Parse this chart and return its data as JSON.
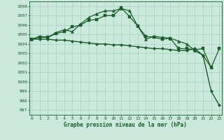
{
  "title": "Graphe pression niveau de la mer (hPa)",
  "bg_color": "#cbe8dc",
  "grid_color": "#9ecfbe",
  "line_color": "#1a5c2a",
  "ylim": [
    996.5,
    1008.5
  ],
  "xlim": [
    -0.3,
    23.3
  ],
  "yticks": [
    997,
    998,
    999,
    1000,
    1001,
    1002,
    1003,
    1004,
    1005,
    1006,
    1007,
    1008
  ],
  "xticks": [
    0,
    1,
    2,
    3,
    4,
    5,
    6,
    7,
    8,
    9,
    10,
    11,
    12,
    13,
    14,
    15,
    16,
    17,
    18,
    19,
    20,
    21,
    22,
    23
  ],
  "series": [
    {
      "x": [
        0,
        1,
        2,
        3,
        4,
        5,
        6,
        7,
        8,
        9,
        10,
        11,
        12,
        13,
        14,
        15,
        16,
        17,
        18,
        19,
        20,
        21,
        22,
        23
      ],
      "y": [
        1004.5,
        1004.7,
        1004.7,
        1005.1,
        1005.3,
        1005.8,
        1006.0,
        1006.5,
        1006.6,
        1007.0,
        1007.0,
        1007.8,
        1006.9,
        1005.9,
        1004.8,
        1004.7,
        1004.5,
        1004.6,
        1003.5,
        1003.5,
        1003.4,
        1003.5,
        1001.5,
        1003.5
      ],
      "marker": "s",
      "markersize": 2.2,
      "linewidth": 0.9
    },
    {
      "x": [
        0,
        1,
        2,
        3,
        4,
        5,
        6,
        7,
        8,
        9,
        10,
        11,
        12,
        13,
        14,
        15,
        16,
        17,
        18,
        19,
        20,
        21,
        22,
        23
      ],
      "y": [
        1004.5,
        1004.8,
        1004.7,
        1005.2,
        1005.5,
        1005.3,
        1006.1,
        1006.8,
        1007.2,
        1007.5,
        1007.5,
        1007.75,
        1007.5,
        1005.9,
        1004.5,
        1004.8,
        1004.7,
        1004.6,
        1004.3,
        1004.0,
        1003.3,
        1002.8,
        1001.5,
        null
      ],
      "marker": "^",
      "markersize": 3.0,
      "linewidth": 0.9
    },
    {
      "x": [
        0,
        1,
        2,
        3,
        4,
        5,
        6,
        7,
        8,
        9,
        10,
        11,
        12,
        13,
        14,
        15,
        16,
        17,
        18,
        19,
        20,
        21,
        22,
        23
      ],
      "y": [
        1004.5,
        1004.5,
        1004.5,
        1004.4,
        1004.4,
        1004.3,
        1004.2,
        1004.1,
        1004.0,
        1004.0,
        1003.9,
        1003.9,
        1003.8,
        1003.7,
        1003.6,
        1003.5,
        1003.5,
        1003.4,
        1003.3,
        1003.3,
        1003.5,
        1002.8,
        999.0,
        997.5
      ],
      "marker": "D",
      "markersize": 2.2,
      "linewidth": 1.0
    }
  ]
}
